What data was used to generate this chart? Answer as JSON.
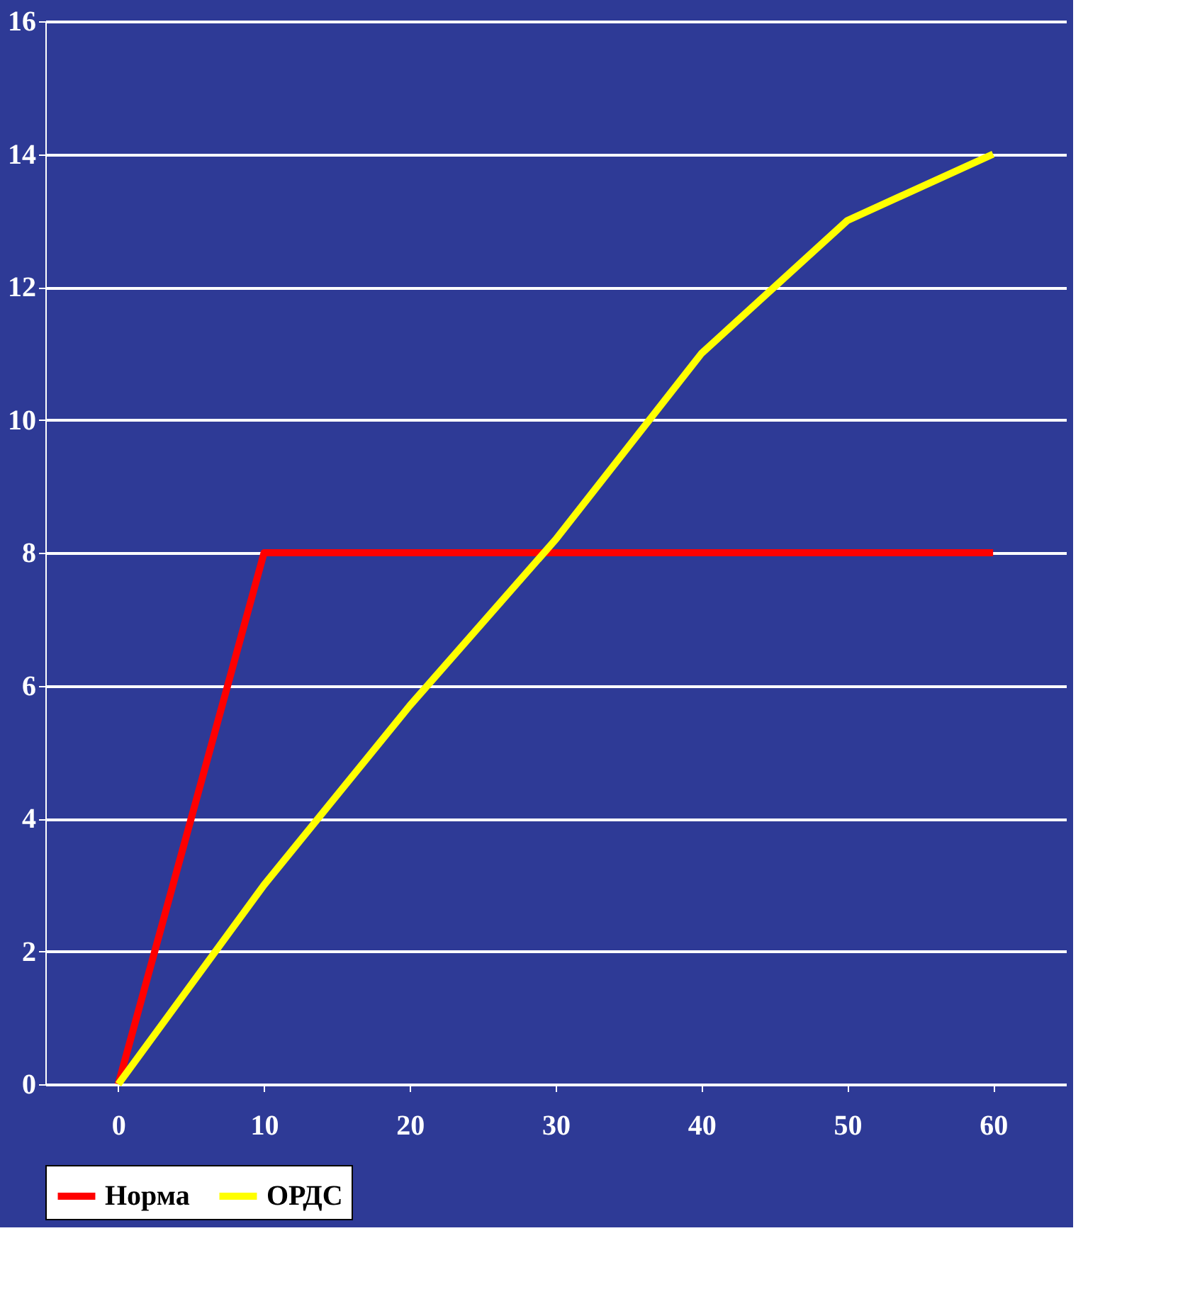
{
  "chart_data": {
    "type": "line",
    "categories": [
      "0",
      "10",
      "20",
      "30",
      "40",
      "50",
      "60"
    ],
    "series": [
      {
        "name": "Норма",
        "color": "#ff0000",
        "values": [
          0,
          8,
          8,
          8,
          8,
          8,
          8
        ]
      },
      {
        "name": "ОРДС",
        "color": "#ffff00",
        "values": [
          0,
          3,
          5.7,
          8.2,
          11,
          13,
          14
        ]
      }
    ],
    "ylim": [
      0,
      16
    ],
    "yticks": [
      0,
      2,
      4,
      6,
      8,
      10,
      12,
      14,
      16
    ],
    "grid": "y",
    "legend": "bottom",
    "marker": "none",
    "line_style": "solid"
  }
}
